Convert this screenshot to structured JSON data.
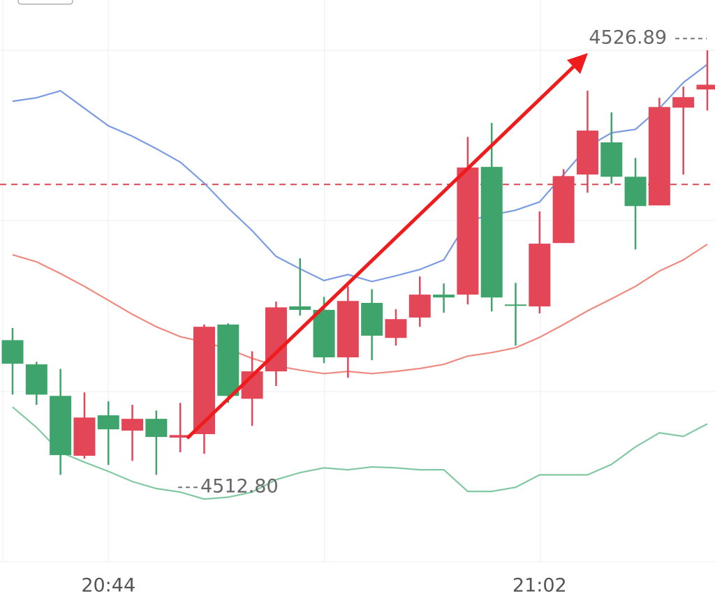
{
  "chart_data": {
    "type": "candlestick",
    "categories": [
      null,
      null,
      null,
      null,
      "20:44",
      null,
      null,
      null,
      null,
      null,
      null,
      null,
      null,
      null,
      null,
      null,
      null,
      null,
      null,
      null,
      null,
      null,
      "21:02",
      null,
      null,
      null,
      null,
      null,
      null,
      null
    ],
    "open": [
      4517.42,
      4516.66,
      4515.67,
      4513.79,
      4515.06,
      4514.58,
      4514.95,
      4514.36,
      4514.47,
      4517.91,
      4515.58,
      4516.44,
      4518.48,
      4518.37,
      4516.88,
      4518.59,
      4517.49,
      4518.13,
      4518.85,
      4518.85,
      4522.86,
      4518.54,
      4518.48,
      4520.47,
      4522.62,
      4523.63,
      4522.55,
      4521.65,
      4524.72,
      4525.29
    ],
    "high": [
      4517.8,
      4516.74,
      4516.52,
      4515.78,
      4515.5,
      4515.39,
      4515.21,
      4515.45,
      4517.91,
      4517.95,
      4517.07,
      4518.63,
      4519.99,
      4518.78,
      4519.11,
      4519.02,
      4518.39,
      4519.42,
      4519.2,
      4523.8,
      4524.24,
      4519.22,
      4521.46,
      4522.79,
      4525.25,
      4524.57,
      4523.14,
      4525.03,
      4525.38,
      4526.52
    ],
    "low": [
      4515.71,
      4515.39,
      4513.19,
      4513.7,
      4513.5,
      4513.63,
      4513.19,
      4513.9,
      4513.85,
      4515.45,
      4514.73,
      4515.98,
      4518.19,
      4516.7,
      4516.24,
      4516.79,
      4517.25,
      4517.84,
      4518.28,
      4518.54,
      4518.32,
      4517.25,
      4518.26,
      4520.47,
      4522.05,
      4522.33,
      4520.27,
      4521.65,
      4522.62,
      4524.63
    ],
    "close": [
      4516.68,
      4515.71,
      4513.81,
      4514.99,
      4514.62,
      4514.95,
      4514.38,
      4514.44,
      4517.84,
      4515.67,
      4516.44,
      4518.45,
      4518.37,
      4516.88,
      4518.65,
      4517.56,
      4518.08,
      4518.85,
      4518.76,
      4522.84,
      4518.76,
      4518.5,
      4520.45,
      4522.57,
      4524.0,
      4522.55,
      4521.63,
      4524.74,
      4525.05,
      4525.44
    ],
    "up_color": "#e24657",
    "down_color": "#3fa46b",
    "series": [
      {
        "color": "#7b9be2",
        "values": [
          4524.92,
          4525.03,
          4525.25,
          4524.7,
          4524.15,
          4523.82,
          4523.43,
          4523.01,
          4522.35,
          4521.57,
          4520.86,
          4520.05,
          4519.66,
          4519.29,
          4519.48,
          4519.26,
          4519.44,
          4519.64,
          4519.94,
          4521.17,
          4521.35,
          4521.5,
          4521.76,
          4522.62,
          4523.49,
          4523.93,
          4524.04,
          4524.7,
          4525.51,
          4526.08
        ]
      },
      {
        "color": "#ee8a80",
        "values": [
          4520.1,
          4519.88,
          4519.51,
          4519.11,
          4518.67,
          4518.23,
          4517.84,
          4517.53,
          4517.36,
          4517.14,
          4516.85,
          4516.61,
          4516.48,
          4516.37,
          4516.44,
          4516.37,
          4516.44,
          4516.53,
          4516.66,
          4516.92,
          4517.03,
          4517.18,
          4517.51,
          4517.91,
          4518.34,
          4518.72,
          4519.11,
          4519.59,
          4519.94,
          4520.43
        ]
      },
      {
        "color": "#82c9a2",
        "values": [
          4515.32,
          4514.68,
          4513.9,
          4513.59,
          4513.3,
          4512.98,
          4512.76,
          4512.65,
          4512.43,
          4512.49,
          4512.65,
          4513.04,
          4513.26,
          4513.41,
          4513.35,
          4513.44,
          4513.41,
          4513.35,
          4513.35,
          4512.67,
          4512.67,
          4512.8,
          4513.19,
          4513.19,
          4513.19,
          4513.52,
          4514.07,
          4514.51,
          4514.4,
          4514.79
        ]
      }
    ],
    "ylim": [
      4510.46,
      4528.1
    ],
    "reference_line": 4522.31,
    "max_label": {
      "value": 4526.89,
      "label": "4526.89"
    },
    "min_label": {
      "value": 4512.8,
      "label": "4512.80"
    }
  }
}
